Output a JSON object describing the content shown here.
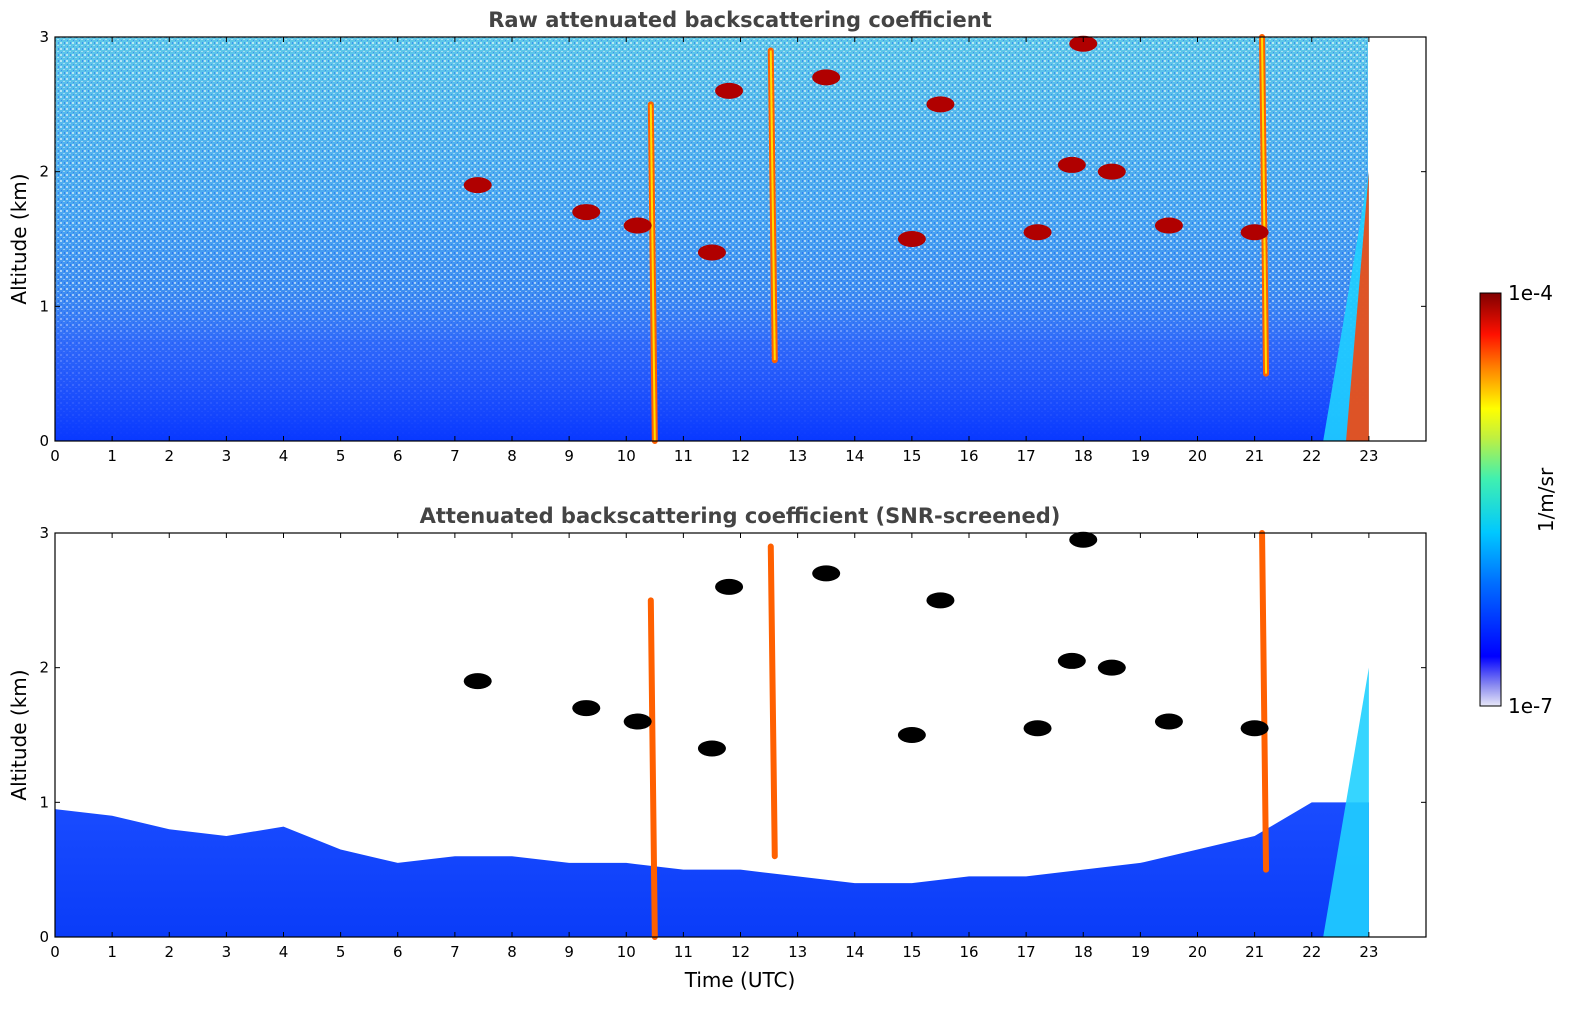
{
  "chart_data": [
    {
      "type": "heatmap",
      "title": "Raw attenuated backscattering coefficient",
      "xlabel": "",
      "ylabel": "Altitude (km)",
      "xlim": [
        0,
        24
      ],
      "ylim": [
        0,
        3
      ],
      "x_ticks": [
        "0",
        "1",
        "2",
        "3",
        "4",
        "5",
        "6",
        "7",
        "8",
        "9",
        "10",
        "11",
        "12",
        "13",
        "14",
        "15",
        "16",
        "17",
        "18",
        "19",
        "20",
        "21",
        "22",
        "23"
      ],
      "y_ticks": [
        "0",
        "1",
        "2",
        "3"
      ],
      "data_end_time": 23,
      "colormap": "jet",
      "value_range": [
        1e-07,
        0.0001
      ],
      "features": [
        {
          "kind": "boundary-layer",
          "time": [
            0,
            23
          ],
          "top_km": 0.5
        },
        {
          "kind": "precipitation-streak",
          "time": 10.5,
          "from_km": 2.5,
          "to_km": 0
        },
        {
          "kind": "precipitation-streak",
          "time": 12.6,
          "from_km": 2.9,
          "to_km": 0.6
        },
        {
          "kind": "precipitation-streak",
          "time": 21.2,
          "from_km": 3.0,
          "to_km": 0.5
        },
        {
          "kind": "rain-fan",
          "time": [
            22.2,
            23
          ],
          "top_km": 2.0
        },
        {
          "kind": "cloud",
          "time": 15.0,
          "altitude_km": 1.5
        },
        {
          "kind": "cloud",
          "time": 17.2,
          "altitude_km": 1.55
        },
        {
          "kind": "cloud",
          "time": 19.5,
          "altitude_km": 1.6
        },
        {
          "kind": "cloud",
          "time": 21.0,
          "altitude_km": 1.55
        },
        {
          "kind": "cloud",
          "time": 18.5,
          "altitude_km": 2.0
        },
        {
          "kind": "cloud",
          "time": 17.8,
          "altitude_km": 2.05
        },
        {
          "kind": "cloud",
          "time": 7.4,
          "altitude_km": 1.9
        },
        {
          "kind": "cloud",
          "time": 9.3,
          "altitude_km": 1.7
        },
        {
          "kind": "cloud",
          "time": 10.2,
          "altitude_km": 1.6
        },
        {
          "kind": "cloud",
          "time": 11.5,
          "altitude_km": 1.4
        },
        {
          "kind": "cloud",
          "time": 13.5,
          "altitude_km": 2.7
        },
        {
          "kind": "cloud",
          "time": 15.5,
          "altitude_km": 2.5
        },
        {
          "kind": "cloud",
          "time": 18.0,
          "altitude_km": 2.95
        },
        {
          "kind": "cloud",
          "time": 11.8,
          "altitude_km": 2.6
        }
      ]
    },
    {
      "type": "heatmap",
      "title": "Attenuated backscattering coefficient (SNR-screened)",
      "xlabel": "Time (UTC)",
      "ylabel": "Altitude (km)",
      "xlim": [
        0,
        24
      ],
      "ylim": [
        0,
        3
      ],
      "x_ticks": [
        "0",
        "1",
        "2",
        "3",
        "4",
        "5",
        "6",
        "7",
        "8",
        "9",
        "10",
        "11",
        "12",
        "13",
        "14",
        "15",
        "16",
        "17",
        "18",
        "19",
        "20",
        "21",
        "22",
        "23"
      ],
      "y_ticks": [
        "0",
        "1",
        "2",
        "3"
      ],
      "data_end_time": 23,
      "colormap": "jet",
      "value_range": [
        1e-07,
        0.0001
      ],
      "boundary_layer_top_km": [
        [
          0,
          0.95
        ],
        [
          1,
          0.9
        ],
        [
          2,
          0.8
        ],
        [
          3,
          0.75
        ],
        [
          4,
          0.82
        ],
        [
          5,
          0.65
        ],
        [
          6,
          0.55
        ],
        [
          7,
          0.6
        ],
        [
          8,
          0.6
        ],
        [
          9,
          0.55
        ],
        [
          10,
          0.55
        ],
        [
          11,
          0.5
        ],
        [
          12,
          0.5
        ],
        [
          13,
          0.45
        ],
        [
          14,
          0.4
        ],
        [
          15,
          0.4
        ],
        [
          16,
          0.45
        ],
        [
          17,
          0.45
        ],
        [
          18,
          0.5
        ],
        [
          19,
          0.55
        ],
        [
          20,
          0.65
        ],
        [
          21,
          0.75
        ],
        [
          22,
          1.0
        ],
        [
          23,
          1.0
        ]
      ]
    }
  ],
  "colorbar": {
    "label": "1/m/sr",
    "max_label": "1e-4",
    "min_label": "1e-7"
  },
  "colors": {
    "background": "#ffffff",
    "title": "#444444"
  }
}
